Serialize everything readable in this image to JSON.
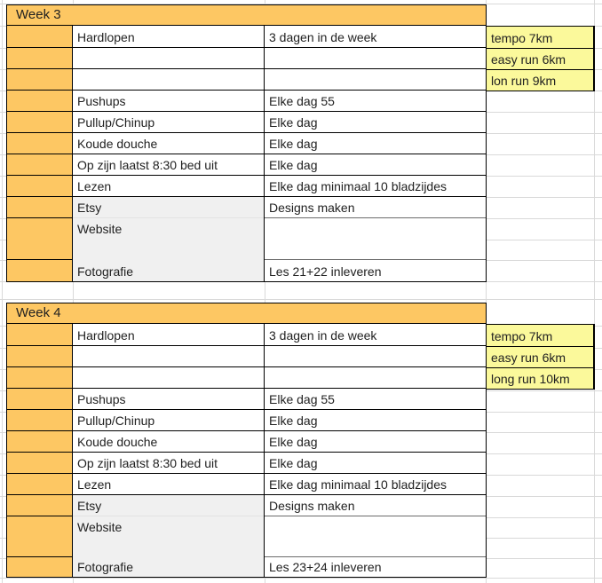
{
  "sheet": {
    "colors": {
      "orange": "#FDC763",
      "yellow": "#FBF99B",
      "gray": "#F0F0F0",
      "border": "#000000",
      "gridline": "#D9D9D9"
    },
    "weeks": [
      {
        "title": "Week 3",
        "rows": [
          {
            "activity": "Hardlopen",
            "detail": "3 dagen in de week"
          },
          {
            "activity": "",
            "detail": ""
          },
          {
            "activity": "",
            "detail": ""
          },
          {
            "activity": "Pushups",
            "detail": "Elke dag 55"
          },
          {
            "activity": "Pullup/Chinup",
            "detail": "Elke dag"
          },
          {
            "activity": "Koude douche",
            "detail": "Elke dag"
          },
          {
            "activity": "Op zijn laatst 8:30 bed uit",
            "detail": "Elke dag"
          },
          {
            "activity": "Lezen",
            "detail": "Elke dag minimaal 10 bladzijdes"
          }
        ],
        "run_plan": [
          "tempo 7km",
          "easy run 6km",
          "lon run 9km"
        ],
        "projects": {
          "etsy_label": "Etsy",
          "etsy_task": "Designs maken",
          "website_label": "Website",
          "website_task": "",
          "fotografie_label": "Fotografie",
          "fotografie_task": "Les 21+22 inleveren"
        }
      },
      {
        "title": "Week 4",
        "rows": [
          {
            "activity": "Hardlopen",
            "detail": "3 dagen in de week"
          },
          {
            "activity": "",
            "detail": ""
          },
          {
            "activity": "",
            "detail": ""
          },
          {
            "activity": "Pushups",
            "detail": "Elke dag 55"
          },
          {
            "activity": "Pullup/Chinup",
            "detail": "Elke dag"
          },
          {
            "activity": "Koude douche",
            "detail": "Elke dag"
          },
          {
            "activity": "Op zijn laatst 8:30 bed uit",
            "detail": "Elke dag"
          },
          {
            "activity": "Lezen",
            "detail": "Elke dag minimaal 10 bladzijdes"
          }
        ],
        "run_plan": [
          "tempo 7km",
          "easy run 6km",
          "long run 10km"
        ],
        "projects": {
          "etsy_label": "Etsy",
          "etsy_task": "Designs maken",
          "website_label": "Website",
          "website_task": "",
          "fotografie_label": "Fotografie",
          "fotografie_task": "Les 23+24 inleveren"
        }
      }
    ]
  }
}
